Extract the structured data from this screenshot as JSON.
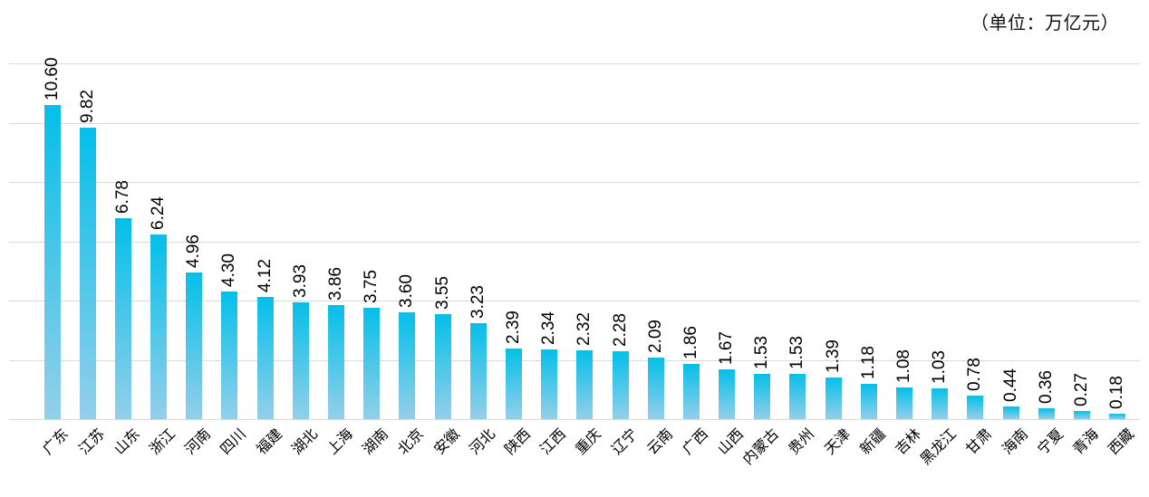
{
  "unit_note": "（单位：万亿元）",
  "chart_data": {
    "type": "bar",
    "title": "",
    "unit_label": "（单位：万亿元）",
    "categories": [
      "广东",
      "江苏",
      "山东",
      "浙江",
      "河南",
      "四川",
      "福建",
      "湖北",
      "上海",
      "湖南",
      "北京",
      "安徽",
      "河北",
      "陕西",
      "江西",
      "重庆",
      "辽宁",
      "云南",
      "广西",
      "山西",
      "内蒙古",
      "贵州",
      "天津",
      "新疆",
      "吉林",
      "黑龙江",
      "甘肃",
      "海南",
      "宁夏",
      "青海",
      "西藏"
    ],
    "values": [
      10.6,
      9.82,
      6.78,
      6.24,
      4.96,
      4.3,
      4.12,
      3.93,
      3.86,
      3.75,
      3.6,
      3.55,
      3.23,
      2.39,
      2.34,
      2.32,
      2.28,
      2.09,
      1.86,
      1.67,
      1.53,
      1.53,
      1.39,
      1.18,
      1.08,
      1.03,
      0.78,
      0.44,
      0.36,
      0.27,
      0.18
    ],
    "value_labels": [
      "10.60",
      "9.82",
      "6.78",
      "6.24",
      "4.96",
      "4.30",
      "4.12",
      "3.93",
      "3.86",
      "3.75",
      "3.60",
      "3.55",
      "3.23",
      "2.39",
      "2.34",
      "2.32",
      "2.28",
      "2.09",
      "1.86",
      "1.67",
      "1.53",
      "1.53",
      "1.39",
      "1.18",
      "1.08",
      "1.03",
      "0.78",
      "0.44",
      "0.36",
      "0.27",
      "0.18"
    ],
    "xlabel": "",
    "ylabel": "",
    "ylim": [
      0,
      12
    ],
    "grid_step": 2,
    "grid_on": true,
    "y_tick_labels_visible": false,
    "value_label_rotation_deg": 90,
    "category_label_rotation_deg": 45,
    "legend": "none",
    "colors": {
      "bar_gradient_top": "#04bfe9",
      "bar_gradient_bottom": "#94cfe9",
      "gridline": "#d9d9d9",
      "label_text": "#000000",
      "unit_text": "#111111",
      "background": "#ffffff"
    }
  }
}
